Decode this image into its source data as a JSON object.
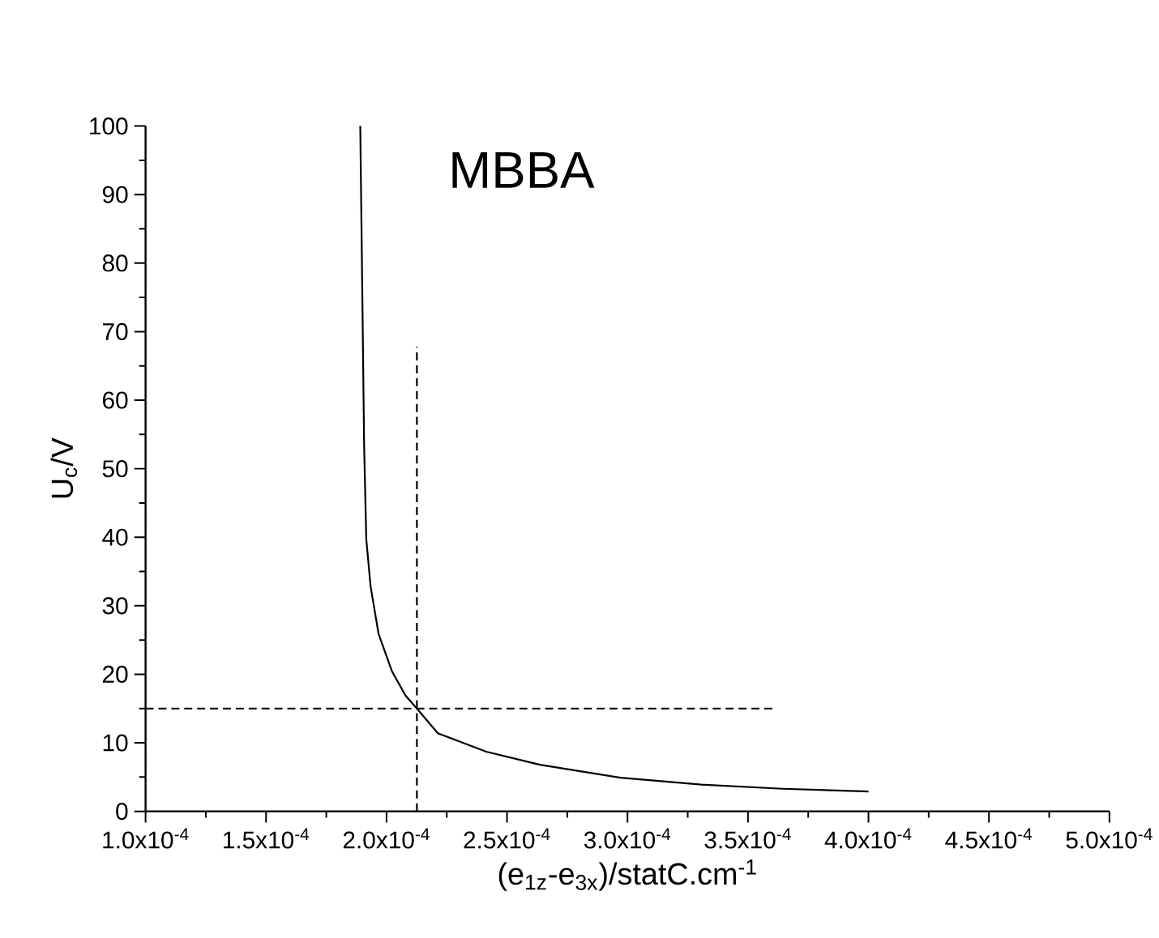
{
  "chart_data": {
    "type": "line",
    "title": "MBBA",
    "xlabel": "(e$_{1z}$-e$_{3x}$)/statC.cm$^{-1}$",
    "ylabel": "U$_{c}$/V",
    "xlim": [
      0.0001,
      0.0005
    ],
    "xticks": [
      {
        "value": 0.0001,
        "label": "1.0x10$^{-4}$"
      },
      {
        "value": 0.00015,
        "label": "1.5x10$^{-4}$"
      },
      {
        "value": 0.0002,
        "label": "2.0x10$^{-4}$"
      },
      {
        "value": 0.00025,
        "label": "2.5x10$^{-4}$"
      },
      {
        "value": 0.0003,
        "label": "3.0x10$^{-4}$"
      },
      {
        "value": 0.00035,
        "label": "3.5x10$^{-4}$"
      },
      {
        "value": 0.0004,
        "label": "4.0x10$^{-4}$"
      },
      {
        "value": 0.00045,
        "label": "4.5x10$^{-4}$"
      },
      {
        "value": 0.0005,
        "label": "5.0x10$^{-4}$"
      }
    ],
    "ylim": [
      0,
      100
    ],
    "yticks": [
      0,
      10,
      20,
      30,
      40,
      50,
      60,
      70,
      80,
      90,
      100
    ],
    "marker": "none",
    "series": [
      {
        "color": "#000000",
        "line_style": "solid",
        "x": [
          0.0001891,
          0.00019,
          0.0001907,
          0.0001916,
          0.0001934,
          0.0001967,
          0.0002023,
          0.0002079,
          0.0002126,
          0.0002213,
          0.0002414,
          0.0002637,
          0.0002972,
          0.0003307,
          0.0003643,
          0.0004
        ],
        "values": [
          100,
          74.1,
          53.4,
          39.7,
          32.8,
          25.9,
          20.4,
          16.9,
          15,
          11.4,
          8.7,
          6.8,
          4.9,
          3.9,
          3.3,
          2.9
        ]
      },
      {
        "color": "#000000",
        "line_style": "dashed",
        "x": [
          0.0002126,
          0.0002126
        ],
        "values": [
          0,
          67.8
        ]
      },
      {
        "color": "#000000",
        "line_style": "dashed",
        "x": [
          0.0001,
          0.000361
        ],
        "values": [
          15,
          15
        ]
      }
    ]
  }
}
